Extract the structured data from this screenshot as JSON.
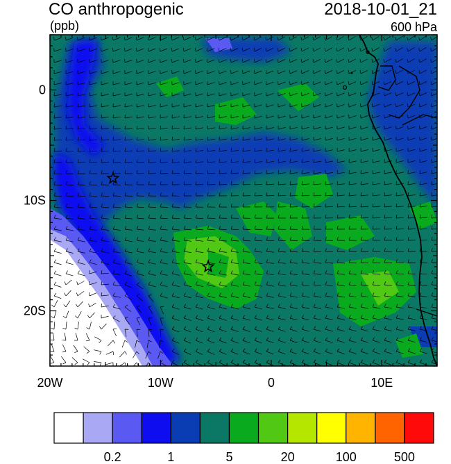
{
  "header": {
    "title": "CO anthropogenic",
    "units": "(ppb)",
    "datetime": "2018-10-01_21",
    "level": "600 hPa"
  },
  "map": {
    "lat_ticks": [
      {
        "value": 0,
        "label": "0"
      },
      {
        "value": -10,
        "label": "10S"
      },
      {
        "value": -20,
        "label": "20S"
      }
    ],
    "lon_ticks": [
      {
        "value": -20,
        "label": "20W"
      },
      {
        "value": -10,
        "label": "10W"
      },
      {
        "value": 0,
        "label": "0"
      },
      {
        "value": 10,
        "label": "10E"
      }
    ],
    "extent": {
      "lon_min": -20,
      "lon_max": 15,
      "lat_min": -25,
      "lat_max": 5
    },
    "markers": [
      {
        "name": "star",
        "lon": -14.3,
        "lat": -8.0
      },
      {
        "name": "star",
        "lon": -5.7,
        "lat": -16.0
      }
    ]
  },
  "colorbar": {
    "colors": [
      "#ffffff",
      "#a8a8f4",
      "#5a5af2",
      "#0d0df0",
      "#0a3cb4",
      "#0a7864",
      "#0aaa1e",
      "#50c814",
      "#b4e600",
      "#ffff00",
      "#ffb400",
      "#ff6400",
      "#ff0a0a"
    ],
    "labels": [
      {
        "after_index": 1,
        "text": "0.2"
      },
      {
        "after_index": 3,
        "text": "1"
      },
      {
        "after_index": 5,
        "text": "5"
      },
      {
        "after_index": 7,
        "text": "20"
      },
      {
        "after_index": 9,
        "text": "100"
      },
      {
        "after_index": 11,
        "text": "500"
      }
    ]
  }
}
